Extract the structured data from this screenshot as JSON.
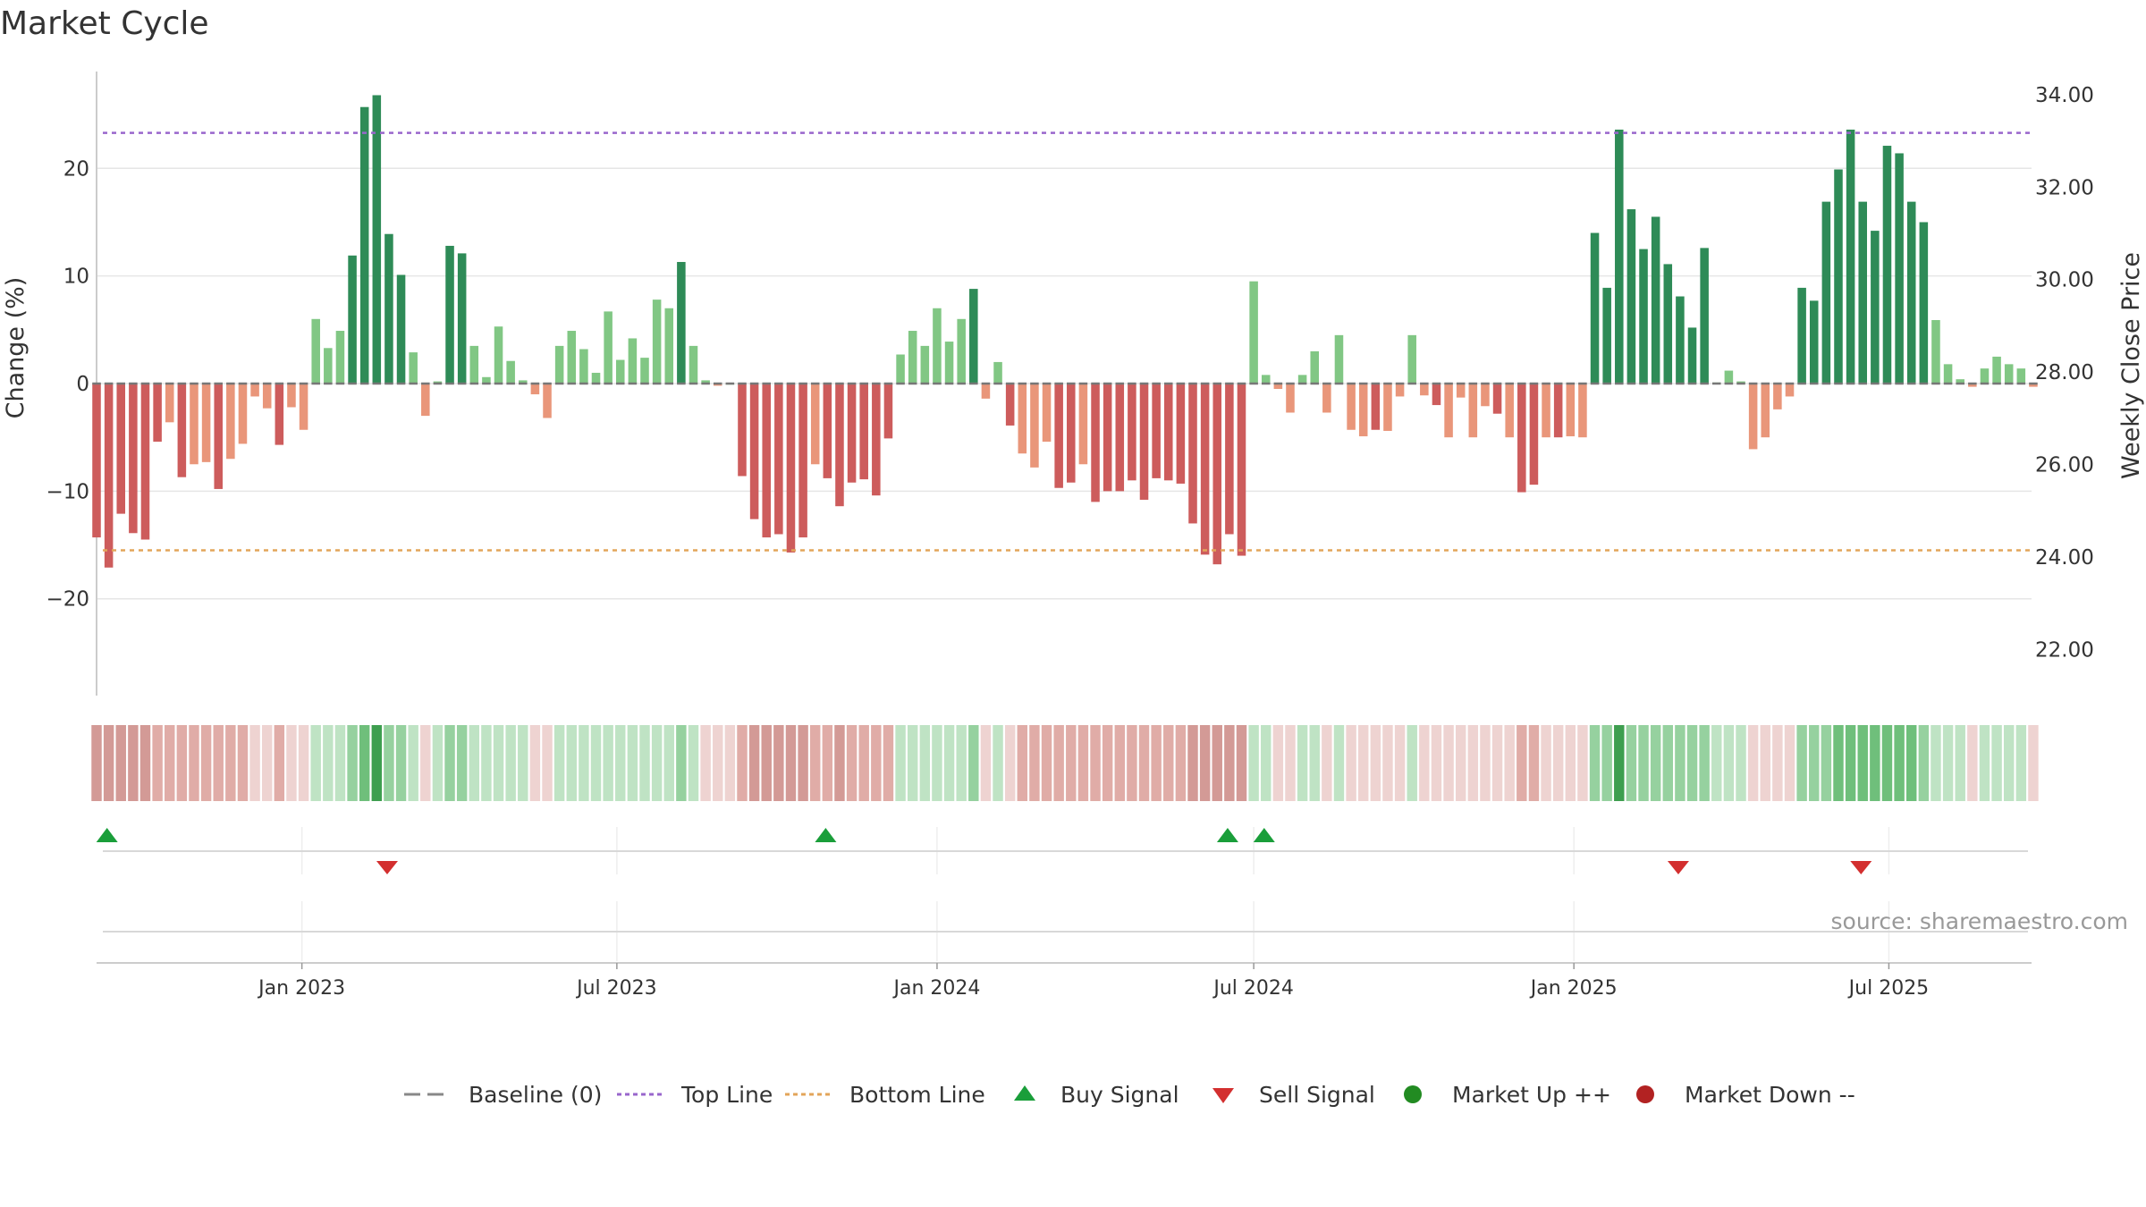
{
  "title": "Market Cycle",
  "source": "source: sharemaestro.com",
  "colors": {
    "strong_up": "#2e8b57",
    "light_up": "#81c784",
    "strong_down": "#cd5c5c",
    "light_down": "#e9967a",
    "top_line": "#9966cc",
    "bottom_line": "#e3a55a",
    "buy": "#1a9e3a",
    "sell": "#d32f2f",
    "market_up": "#228b22",
    "market_down": "#b22222",
    "baseline": "#888888"
  },
  "chart_data": {
    "type": "bar",
    "title": "Market Cycle",
    "ylabel": "Change (%)",
    "y2label": "Weekly Close Price",
    "ylim": [
      -29,
      29
    ],
    "y2lim": [
      21.0,
      34.5
    ],
    "yticks": [
      -20,
      -10,
      0,
      10,
      20
    ],
    "y2ticks": [
      "22.00",
      "24.00",
      "26.00",
      "28.00",
      "30.00",
      "32.00",
      "34.00"
    ],
    "top_line": 23.3,
    "bottom_line": -15.5,
    "x_start": "2022-09-05",
    "x_step_days": 7,
    "x_range": [
      "2022-09-05",
      "2025-09-21"
    ],
    "xticks": [
      {
        "date": "2023-01-01",
        "label": "Jan 2023"
      },
      {
        "date": "2023-07-01",
        "label": "Jul 2023"
      },
      {
        "date": "2024-01-01",
        "label": "Jan 2024"
      },
      {
        "date": "2024-07-01",
        "label": "Jul 2024"
      },
      {
        "date": "2025-01-01",
        "label": "Jan 2025"
      },
      {
        "date": "2025-07-01",
        "label": "Jul 2025"
      }
    ],
    "values": [
      -14.3,
      -17.1,
      -12.1,
      -13.9,
      -14.5,
      -5.4,
      -3.6,
      -8.7,
      -7.5,
      -7.3,
      -9.8,
      -7.0,
      -5.6,
      -1.2,
      -2.3,
      -5.7,
      -2.2,
      -4.3,
      6.0,
      3.3,
      4.9,
      11.9,
      25.7,
      26.8,
      13.9,
      10.1,
      2.9,
      -3.0,
      0.2,
      12.8,
      12.1,
      3.5,
      0.6,
      5.3,
      2.1,
      0.3,
      -1.0,
      -3.2,
      3.5,
      4.9,
      3.2,
      1.0,
      6.7,
      2.2,
      4.2,
      2.4,
      7.8,
      7.0,
      11.3,
      3.5,
      0.3,
      -0.2,
      0,
      -8.6,
      -12.6,
      -14.3,
      -14.0,
      -15.7,
      -14.3,
      -7.5,
      -8.8,
      -11.4,
      -9.2,
      -8.9,
      -10.4,
      -5.1,
      2.7,
      4.9,
      3.5,
      7.0,
      3.9,
      6.0,
      8.8,
      -1.4,
      2.0,
      -3.9,
      -6.5,
      -7.8,
      -5.4,
      -9.7,
      -9.2,
      -7.5,
      -11.0,
      -10.0,
      -10.0,
      -9.0,
      -10.8,
      -8.8,
      -9.0,
      -9.3,
      -13.0,
      -15.9,
      -16.8,
      -14.0,
      -16.0,
      9.5,
      0.8,
      -0.5,
      -2.7,
      0.8,
      3.0,
      -2.7,
      4.5,
      -4.3,
      -4.9,
      -4.3,
      -4.4,
      -1.2,
      4.5,
      -1.1,
      -2.0,
      -5.0,
      -1.3,
      -5.0,
      -2.1,
      -2.8,
      -5.0,
      -10.1,
      -9.4,
      -5.0,
      -5.0,
      -4.9,
      -5.0,
      14.0,
      8.9,
      23.6,
      16.2,
      12.5,
      15.5,
      11.1,
      8.1,
      5.2,
      12.6,
      0.1,
      1.2,
      0.2,
      -6.1,
      -5.0,
      -2.4,
      -1.2,
      8.9,
      7.7,
      16.9,
      19.9,
      23.6,
      16.9,
      14.2,
      22.1,
      21.4,
      16.9,
      15.0,
      5.9,
      1.8,
      0.4,
      -0.3,
      1.4,
      2.5,
      1.8,
      1.4,
      -0.3
    ],
    "heat_levels": [
      -3,
      -3,
      -3,
      -3,
      -3,
      -2,
      -2,
      -2,
      -2,
      -2,
      -2,
      -2,
      -2,
      -1,
      -1,
      -2,
      -1,
      -1,
      1,
      1,
      1,
      2,
      3,
      4,
      2,
      2,
      1,
      -1,
      1,
      2,
      2,
      1,
      1,
      1,
      1,
      1,
      -1,
      -1,
      1,
      1,
      1,
      1,
      1,
      1,
      1,
      1,
      1,
      1,
      2,
      1,
      -1,
      -1,
      -1,
      -2,
      -3,
      -3,
      -3,
      -3,
      -3,
      -2,
      -2,
      -3,
      -2,
      -2,
      -2,
      -2,
      1,
      1,
      1,
      1,
      1,
      1,
      2,
      -1,
      1,
      -1,
      -2,
      -2,
      -2,
      -2,
      -2,
      -2,
      -2,
      -2,
      -2,
      -2,
      -2,
      -2,
      -2,
      -2,
      -3,
      -3,
      -3,
      -3,
      -3,
      1,
      1,
      -1,
      -1,
      1,
      1,
      -1,
      1,
      -1,
      -1,
      -1,
      -1,
      -1,
      1,
      -1,
      -1,
      -1,
      -1,
      -1,
      -1,
      -1,
      -1,
      -2,
      -2,
      -1,
      -1,
      -1,
      -1,
      2,
      2,
      4,
      2,
      2,
      2,
      2,
      2,
      2,
      2,
      1,
      1,
      1,
      -1,
      -1,
      -1,
      -1,
      2,
      2,
      2,
      3,
      3,
      3,
      3,
      3,
      3,
      3,
      2,
      1,
      1,
      1,
      -1,
      1,
      1,
      1,
      1,
      -1
    ],
    "buy_signals": [
      "2022-09-11",
      "2023-10-29",
      "2024-06-16",
      "2024-07-07"
    ],
    "sell_signals": [
      "2023-02-19",
      "2025-03-02",
      "2025-06-15"
    ]
  },
  "legend": [
    {
      "kind": "dash",
      "label": "Baseline (0)",
      "color": "#888888"
    },
    {
      "kind": "dot",
      "label": "Top Line",
      "color": "#9966cc"
    },
    {
      "kind": "dot",
      "label": "Bottom Line",
      "color": "#e3a55a"
    },
    {
      "kind": "up",
      "label": "Buy Signal",
      "color": "#1a9e3a"
    },
    {
      "kind": "down",
      "label": "Sell Signal",
      "color": "#d32f2f"
    },
    {
      "kind": "circle",
      "label": "Market Up ++",
      "color": "#228b22"
    },
    {
      "kind": "circle",
      "label": "Market Down --",
      "color": "#b22222"
    }
  ]
}
